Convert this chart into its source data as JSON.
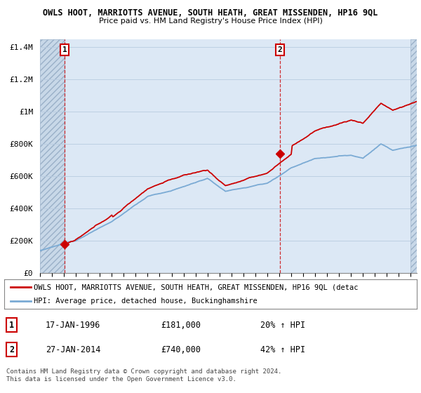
{
  "title": "OWLS HOOT, MARRIOTTS AVENUE, SOUTH HEATH, GREAT MISSENDEN, HP16 9QL",
  "subtitle": "Price paid vs. HM Land Registry's House Price Index (HPI)",
  "ylabel_ticks": [
    "£0",
    "£200K",
    "£400K",
    "£600K",
    "£800K",
    "£1M",
    "£1.2M",
    "£1.4M"
  ],
  "ytick_values": [
    0,
    200000,
    400000,
    600000,
    800000,
    1000000,
    1200000,
    1400000
  ],
  "ylim": [
    0,
    1450000
  ],
  "xlim_start": 1994.0,
  "xlim_end": 2025.5,
  "hpi_color": "#7aaad4",
  "property_color": "#cc0000",
  "sale1_year": 1996.05,
  "sale1_price": 181000,
  "sale2_year": 2014.07,
  "sale2_price": 740000,
  "legend_property": "OWLS HOOT, MARRIOTTS AVENUE, SOUTH HEATH, GREAT MISSENDEN, HP16 9QL (detac",
  "legend_hpi": "HPI: Average price, detached house, Buckinghamshire",
  "table_row1": [
    "1",
    "17-JAN-1996",
    "£181,000",
    "20% ↑ HPI"
  ],
  "table_row2": [
    "2",
    "27-JAN-2014",
    "£740,000",
    "42% ↑ HPI"
  ],
  "footnote": "Contains HM Land Registry data © Crown copyright and database right 2024.\nThis data is licensed under the Open Government Licence v3.0.",
  "plot_bg_color": "#dce8f5",
  "hatch_bg_color": "#c8d8e8",
  "grid_color": "#b8cce0"
}
